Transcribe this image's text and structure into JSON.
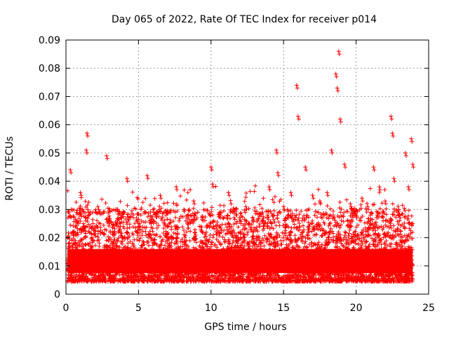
{
  "chart_data": {
    "type": "scatter",
    "title": "Day 065 of 2022, Rate Of TEC Index for receiver p014",
    "xlabel": "GPS time / hours",
    "ylabel": "ROTI / TECUs",
    "xlim": [
      0,
      25
    ],
    "ylim": [
      0,
      0.09
    ],
    "x_ticks": [
      0,
      5,
      10,
      15,
      20,
      25
    ],
    "x_tick_labels": [
      "0",
      "5",
      "10",
      "15",
      "20",
      "25"
    ],
    "y_ticks": [
      0,
      0.01,
      0.02,
      0.03,
      0.04,
      0.05,
      0.06,
      0.07,
      0.08,
      0.09
    ],
    "y_tick_labels": [
      "0",
      "0.01",
      "0.02",
      "0.03",
      "0.04",
      "0.05",
      "0.06",
      "0.07",
      "0.08",
      "0.09"
    ],
    "grid": true,
    "marker": "+",
    "color": "#ff0000",
    "series": [
      {
        "name": "p014",
        "x": [
          0.1,
          0.2,
          0.3,
          0.5,
          0.7,
          1.0,
          1.2,
          1.4,
          1.45,
          1.5,
          1.8,
          2.2,
          2.6,
          2.8,
          3.3,
          3.8,
          4.2,
          4.6,
          5.0,
          5.6,
          6.0,
          6.5,
          7.0,
          7.6,
          8.2,
          8.8,
          9.4,
          10.0,
          10.1,
          10.6,
          11.2,
          11.8,
          12.4,
          13.0,
          13.6,
          14.0,
          14.5,
          14.6,
          15.0,
          15.5,
          15.9,
          16.0,
          16.5,
          17.0,
          17.5,
          18.0,
          18.3,
          18.6,
          18.7,
          18.8,
          18.9,
          19.2,
          19.6,
          20.0,
          20.4,
          20.8,
          21.2,
          21.6,
          22.0,
          22.4,
          22.5,
          22.6,
          23.0,
          23.4,
          23.6,
          23.8,
          23.9
        ],
        "y": [
          0.012,
          0.018,
          0.044,
          0.022,
          0.015,
          0.036,
          0.025,
          0.051,
          0.057,
          0.03,
          0.02,
          0.031,
          0.014,
          0.049,
          0.022,
          0.028,
          0.041,
          0.018,
          0.024,
          0.042,
          0.03,
          0.035,
          0.021,
          0.038,
          0.016,
          0.033,
          0.027,
          0.045,
          0.039,
          0.029,
          0.036,
          0.019,
          0.031,
          0.012,
          0.026,
          0.038,
          0.051,
          0.043,
          0.031,
          0.036,
          0.074,
          0.063,
          0.045,
          0.035,
          0.033,
          0.036,
          0.051,
          0.078,
          0.073,
          0.086,
          0.062,
          0.046,
          0.032,
          0.028,
          0.034,
          0.031,
          0.045,
          0.038,
          0.033,
          0.063,
          0.057,
          0.041,
          0.028,
          0.05,
          0.038,
          0.055,
          0.046
        ]
      }
    ]
  }
}
